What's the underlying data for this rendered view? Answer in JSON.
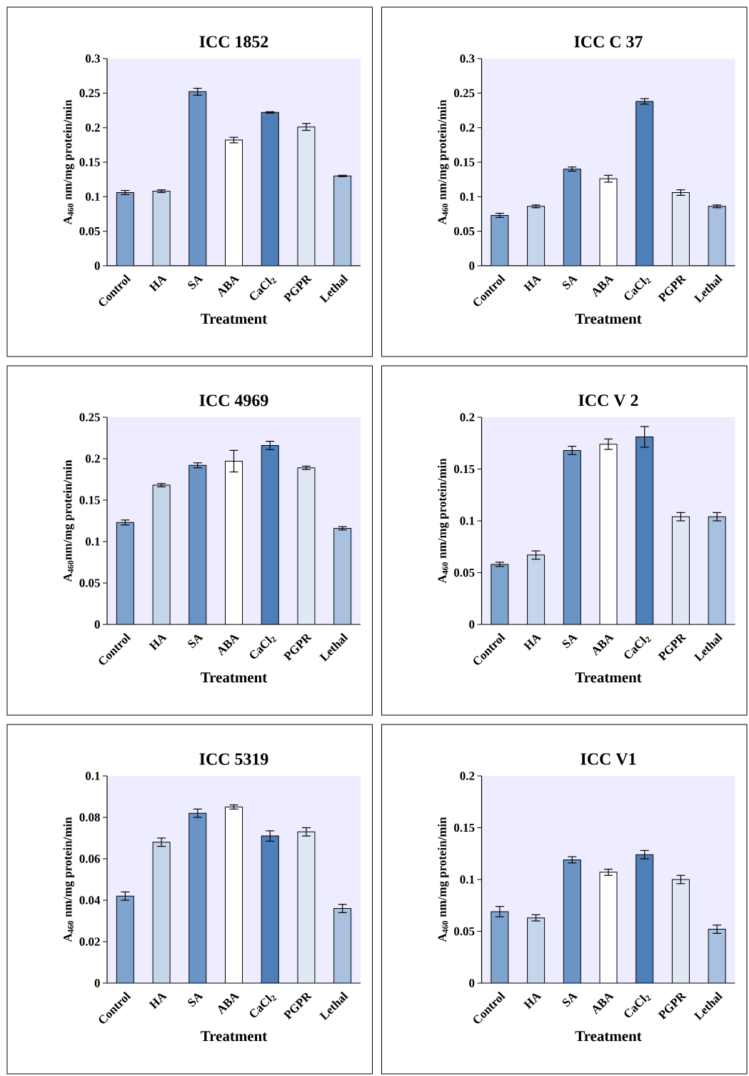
{
  "chart_data": [
    {
      "type": "bar",
      "title": "ICC 1852",
      "xlabel": "Treatment",
      "ylabel": "A$_{460}$ nm/mg protein/min",
      "categories": [
        "Control",
        "HA",
        "SA",
        "ABA",
        "CaCl$_{2}$",
        "PGPR",
        "Lethal"
      ],
      "values": [
        0.106,
        0.108,
        0.252,
        0.182,
        0.222,
        0.201,
        0.13
      ],
      "errors": [
        0.003,
        0.002,
        0.005,
        0.004,
        0.001,
        0.005,
        0.001
      ],
      "colors": [
        "#7fa3cf",
        "#c5d5ea",
        "#6a93c6",
        "#ffffff",
        "#4f7fb8",
        "#dfe8f3",
        "#a9c1e0"
      ],
      "ylim": [
        0,
        0.3
      ],
      "yticks": [
        0,
        0.05,
        0.1,
        0.15,
        0.2,
        0.25,
        0.3
      ]
    },
    {
      "type": "bar",
      "title": "ICC C 37",
      "xlabel": "Treatment",
      "ylabel": "A$_{460}$ nm/mg protein/min",
      "categories": [
        "Control",
        "HA",
        "SA",
        "ABA",
        "CaCl$_{2}$",
        "PGPR",
        "Lethal"
      ],
      "values": [
        0.073,
        0.086,
        0.14,
        0.126,
        0.238,
        0.106,
        0.086
      ],
      "errors": [
        0.003,
        0.002,
        0.003,
        0.005,
        0.004,
        0.004,
        0.002
      ],
      "colors": [
        "#7fa3cf",
        "#c5d5ea",
        "#6a93c6",
        "#ffffff",
        "#4f7fb8",
        "#dfe8f3",
        "#a9c1e0"
      ],
      "ylim": [
        0,
        0.3
      ],
      "yticks": [
        0,
        0.05,
        0.1,
        0.15,
        0.2,
        0.25,
        0.3
      ]
    },
    {
      "type": "bar",
      "title": "ICC 4969",
      "xlabel": "Treatment",
      "ylabel": "A$_{460}$nm/mg protein/min",
      "categories": [
        "Control",
        "HA",
        "SA",
        "ABA",
        "CaCl$_{2}$",
        "PGPR",
        "Lethal"
      ],
      "values": [
        0.123,
        0.168,
        0.192,
        0.197,
        0.216,
        0.189,
        0.116
      ],
      "errors": [
        0.003,
        0.002,
        0.003,
        0.013,
        0.005,
        0.002,
        0.002
      ],
      "colors": [
        "#7fa3cf",
        "#c5d5ea",
        "#6a93c6",
        "#ffffff",
        "#4f7fb8",
        "#dfe8f3",
        "#a9c1e0"
      ],
      "ylim": [
        0,
        0.25
      ],
      "yticks": [
        0,
        0.05,
        0.1,
        0.15,
        0.2,
        0.25
      ]
    },
    {
      "type": "bar",
      "title": "ICC V 2",
      "xlabel": "Treatment",
      "ylabel": "A$_{460}$ nm/mg protein/min",
      "categories": [
        "Control",
        "HA",
        "SA",
        "ABA",
        "CaCl$_{2}$",
        "PGPR",
        "Lethal"
      ],
      "values": [
        0.058,
        0.067,
        0.168,
        0.174,
        0.181,
        0.104,
        0.104
      ],
      "errors": [
        0.002,
        0.004,
        0.004,
        0.005,
        0.01,
        0.004,
        0.004
      ],
      "colors": [
        "#7fa3cf",
        "#c5d5ea",
        "#6a93c6",
        "#ffffff",
        "#4f7fb8",
        "#dfe8f3",
        "#a9c1e0"
      ],
      "ylim": [
        0,
        0.2
      ],
      "yticks": [
        0,
        0.05,
        0.1,
        0.15,
        0.2
      ]
    },
    {
      "type": "bar",
      "title": "ICC 5319",
      "xlabel": "Treatment",
      "ylabel": "A$_{460}$ nm/mg protein/min",
      "categories": [
        "Control",
        "HA",
        "SA",
        "ABA",
        "CaCl$_{2}$",
        "PGPR",
        "Lethal"
      ],
      "values": [
        0.042,
        0.068,
        0.082,
        0.085,
        0.071,
        0.073,
        0.036
      ],
      "errors": [
        0.002,
        0.002,
        0.002,
        0.001,
        0.0025,
        0.002,
        0.002
      ],
      "colors": [
        "#7fa3cf",
        "#c5d5ea",
        "#6a93c6",
        "#ffffff",
        "#4f7fb8",
        "#dfe8f3",
        "#a9c1e0"
      ],
      "ylim": [
        0,
        0.1
      ],
      "yticks": [
        0,
        0.02,
        0.04,
        0.06,
        0.08,
        0.1
      ]
    },
    {
      "type": "bar",
      "title": "ICC V1",
      "xlabel": "Treatment",
      "ylabel": "A$_{460}$ nm/mg protein/min",
      "categories": [
        "Control",
        "HA",
        "SA",
        "ABA",
        "CaCl$_{2}$",
        "PGPR",
        "Lethal"
      ],
      "values": [
        0.069,
        0.063,
        0.119,
        0.107,
        0.124,
        0.1,
        0.052
      ],
      "errors": [
        0.005,
        0.003,
        0.003,
        0.003,
        0.004,
        0.004,
        0.004
      ],
      "colors": [
        "#7fa3cf",
        "#c5d5ea",
        "#6a93c6",
        "#ffffff",
        "#4f7fb8",
        "#dfe8f3",
        "#a9c1e0"
      ],
      "ylim": [
        0,
        0.2
      ],
      "yticks": [
        0,
        0.05,
        0.1,
        0.15,
        0.2
      ]
    }
  ]
}
